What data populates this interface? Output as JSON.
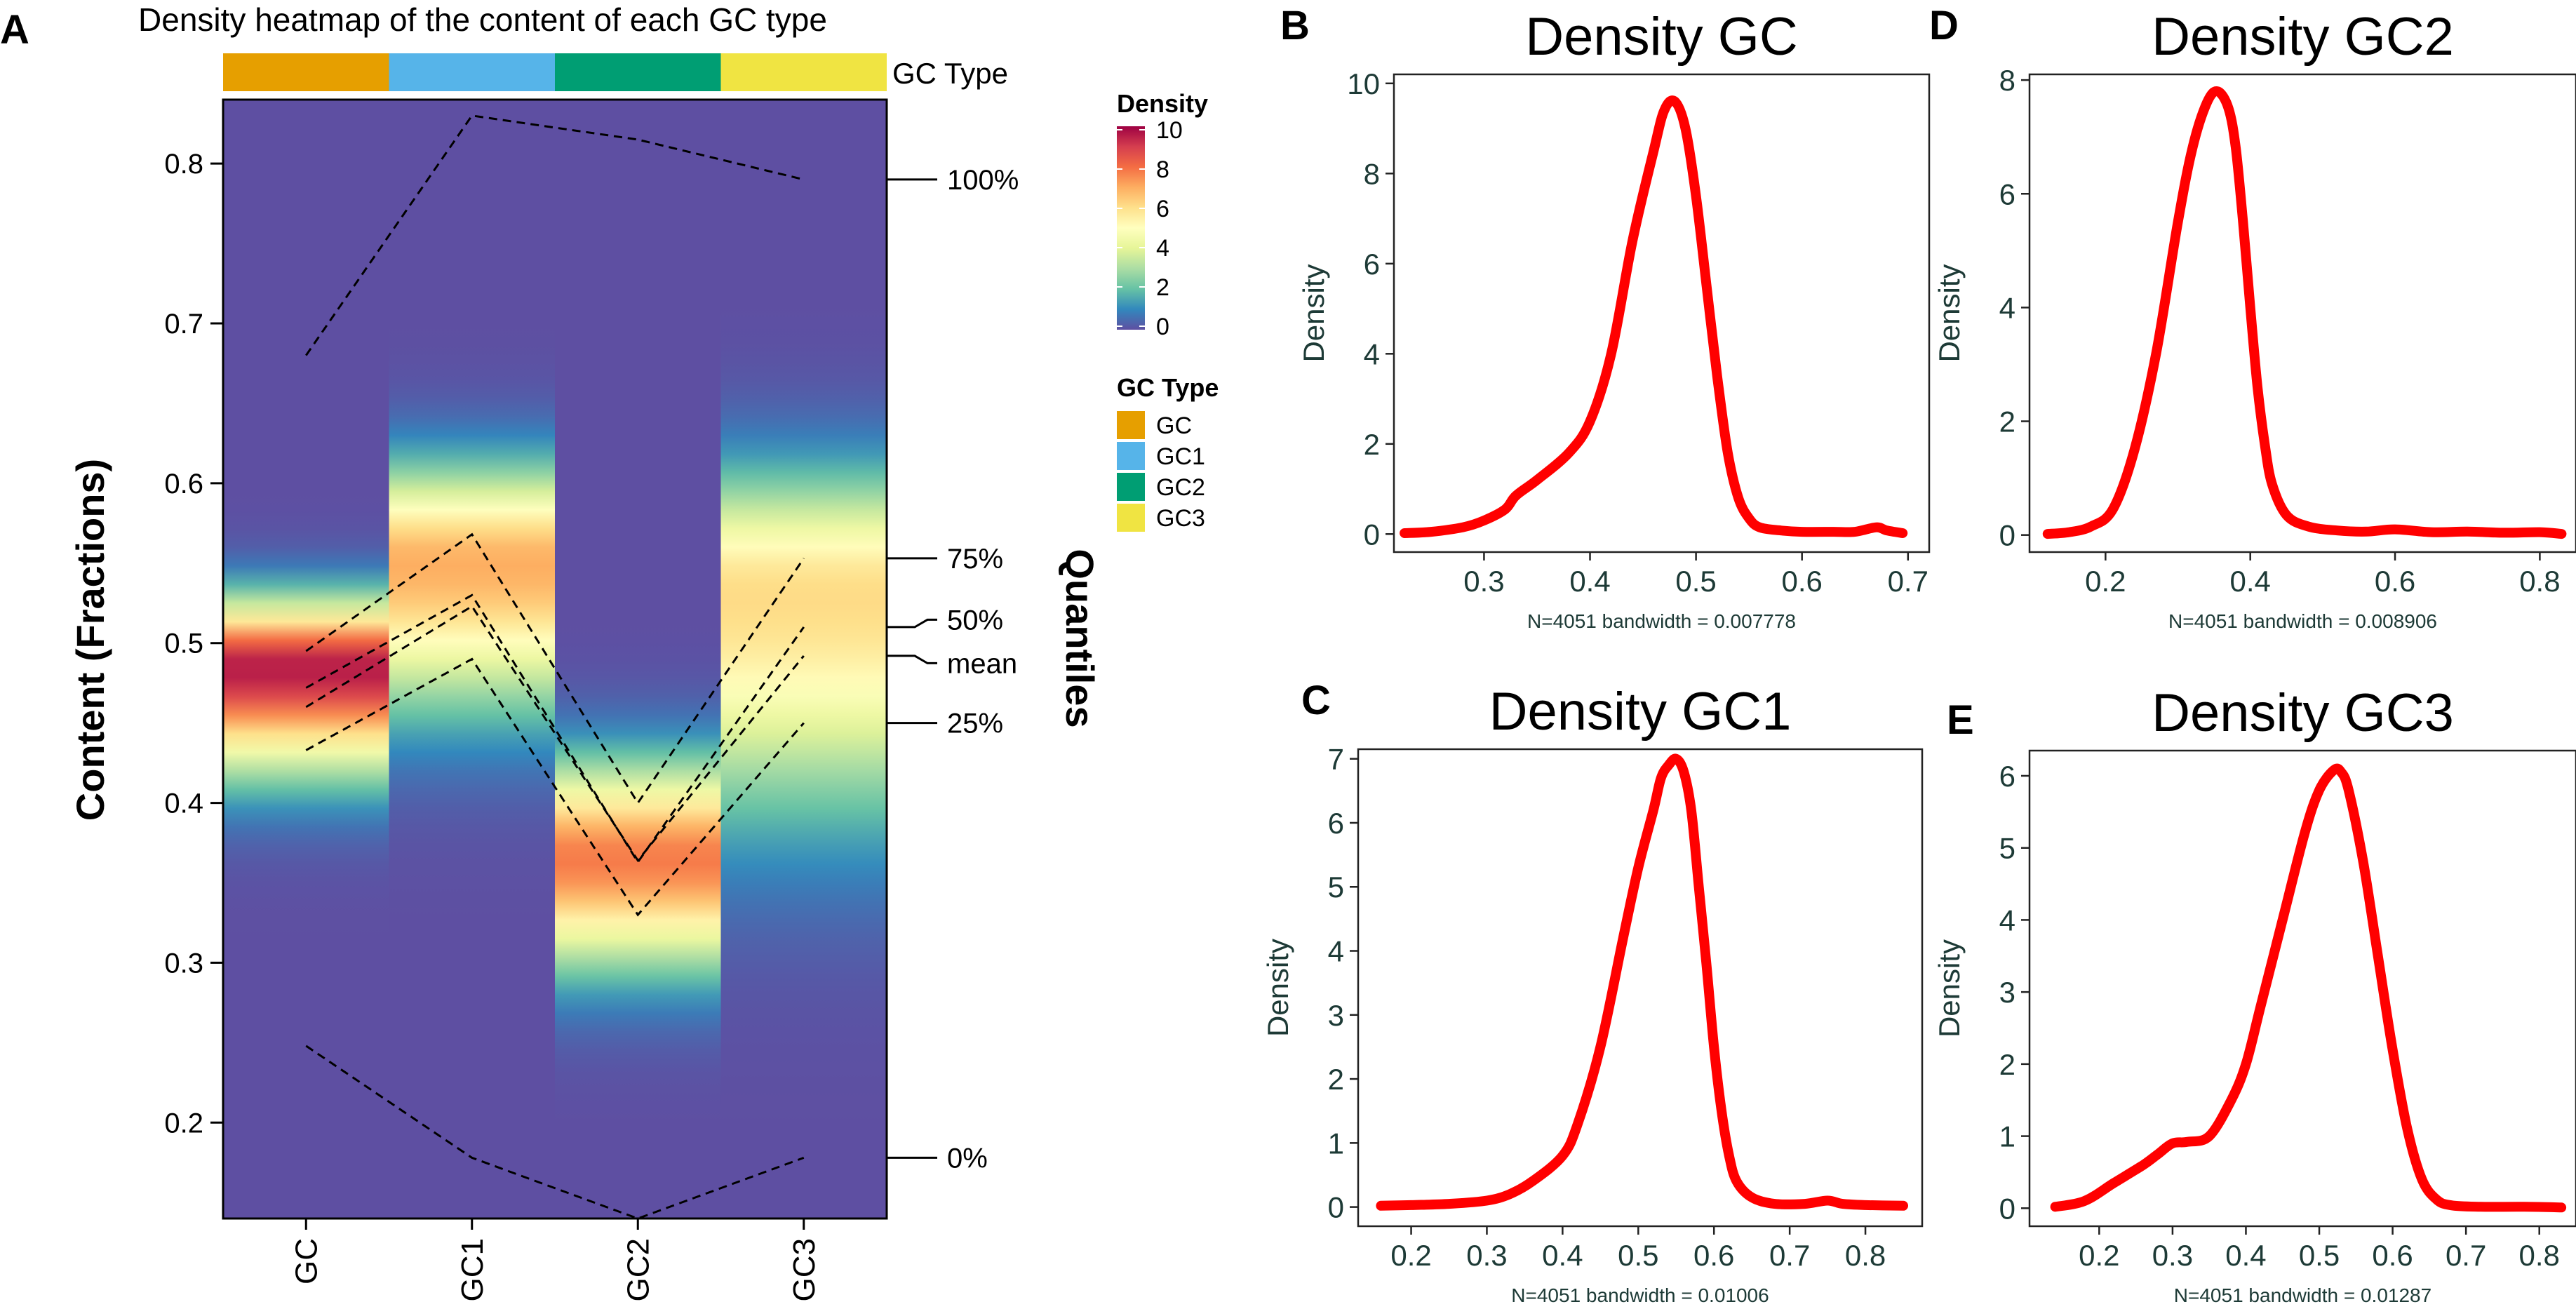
{
  "figure": {
    "panel_labels": {
      "a": "A",
      "b": "B",
      "c": "C",
      "d": "D",
      "e": "E"
    }
  },
  "chart_data": [
    {
      "panel": "A",
      "type": "heatmap",
      "title": "Density heatmap of the content of each GC type",
      "xlabel": "",
      "ylabel": "Content (Fractions)",
      "right_axis_label": "Quantiles",
      "categories": [
        "GC",
        "GC1",
        "GC2",
        "GC3"
      ],
      "ylim": [
        0.14,
        0.84
      ],
      "yticks": [
        0.2,
        0.3,
        0.4,
        0.5,
        0.6,
        0.7,
        0.8
      ],
      "annotation_bar": {
        "label": "GC Type",
        "colors": [
          "#E69F00",
          "#56B4E9",
          "#009E73",
          "#F0E442"
        ]
      },
      "density_legend": {
        "title": "Density",
        "ticks": [
          10,
          8,
          6,
          4,
          2,
          0
        ],
        "stops": [
          "#5E4FA2",
          "#3288BD",
          "#66C2A5",
          "#ABDDA4",
          "#E6F598",
          "#FFFFBF",
          "#FEE08B",
          "#FDAE61",
          "#F46D43",
          "#D53E4F",
          "#9E0142"
        ]
      },
      "type_legend": {
        "title": "GC Type",
        "items": [
          {
            "label": "GC",
            "color": "#E69F00"
          },
          {
            "label": "GC1",
            "color": "#56B4E9"
          },
          {
            "label": "GC2",
            "color": "#009E73"
          },
          {
            "label": "GC3",
            "color": "#F0E442"
          }
        ]
      },
      "quantiles": [
        {
          "label": "100%",
          "values": [
            0.68,
            0.83,
            0.815,
            0.79
          ]
        },
        {
          "label": "75%",
          "values": [
            0.495,
            0.568,
            0.4,
            0.553
          ]
        },
        {
          "label": "50%",
          "values": [
            0.472,
            0.53,
            0.363,
            0.51
          ]
        },
        {
          "label": "mean",
          "values": [
            0.46,
            0.523,
            0.364,
            0.492
          ]
        },
        {
          "label": "25%",
          "values": [
            0.433,
            0.49,
            0.33,
            0.45
          ]
        },
        {
          "label": "0%",
          "values": [
            0.248,
            0.178,
            0.14,
            0.178
          ]
        }
      ],
      "density_profiles": [
        {
          "type": "GC",
          "mode": 0.485,
          "sd_low": 0.043,
          "sd_high": 0.028,
          "peak": 9.6
        },
        {
          "type": "GC1",
          "mode": 0.55,
          "sd_low": 0.06,
          "sd_high": 0.04,
          "peak": 7.0
        },
        {
          "type": "GC2",
          "mode": 0.365,
          "sd_low": 0.045,
          "sd_high": 0.04,
          "peak": 7.8
        },
        {
          "type": "GC3",
          "mode": 0.53,
          "sd_low": 0.09,
          "sd_high": 0.05,
          "peak": 6.1
        }
      ]
    },
    {
      "panel": "B",
      "type": "line",
      "title": "Density GC",
      "xlabel": "N=4051 bandwidth = 0.007778",
      "ylabel": "Density",
      "xlim": [
        0.215,
        0.72
      ],
      "ylim": [
        -0.4,
        10.2
      ],
      "xticks": [
        0.3,
        0.4,
        0.5,
        0.6,
        0.7
      ],
      "yticks": [
        0,
        2,
        4,
        6,
        8,
        10
      ],
      "series": [
        {
          "name": "GC",
          "color": "#FF0000",
          "x": [
            0.225,
            0.25,
            0.28,
            0.3,
            0.32,
            0.33,
            0.35,
            0.38,
            0.4,
            0.42,
            0.44,
            0.46,
            0.47,
            0.48,
            0.49,
            0.5,
            0.51,
            0.52,
            0.53,
            0.54,
            0.55,
            0.56,
            0.58,
            0.6,
            0.63,
            0.65,
            0.67,
            0.68,
            0.695
          ],
          "y": [
            0.02,
            0.05,
            0.15,
            0.3,
            0.55,
            0.85,
            1.2,
            1.8,
            2.5,
            4.0,
            6.5,
            8.5,
            9.4,
            9.6,
            9.0,
            7.5,
            5.5,
            3.5,
            1.8,
            0.8,
            0.35,
            0.15,
            0.08,
            0.05,
            0.05,
            0.05,
            0.15,
            0.08,
            0.02
          ]
        }
      ]
    },
    {
      "panel": "C",
      "type": "line",
      "title": "Density GC1",
      "xlabel": "N=4051 bandwidth = 0.01006",
      "ylabel": "Density",
      "xlim": [
        0.13,
        0.875
      ],
      "ylim": [
        -0.3,
        7.15
      ],
      "xticks": [
        0.2,
        0.3,
        0.4,
        0.5,
        0.6,
        0.7,
        0.8
      ],
      "yticks": [
        0,
        1,
        2,
        3,
        4,
        5,
        6,
        7
      ],
      "series": [
        {
          "name": "GC1",
          "color": "#FF0000",
          "x": [
            0.16,
            0.2,
            0.25,
            0.3,
            0.33,
            0.36,
            0.4,
            0.42,
            0.45,
            0.48,
            0.5,
            0.52,
            0.53,
            0.54,
            0.55,
            0.56,
            0.57,
            0.58,
            0.59,
            0.6,
            0.61,
            0.62,
            0.63,
            0.65,
            0.68,
            0.72,
            0.75,
            0.77,
            0.8,
            0.85
          ],
          "y": [
            0.02,
            0.03,
            0.05,
            0.1,
            0.2,
            0.4,
            0.8,
            1.3,
            2.5,
            4.2,
            5.3,
            6.2,
            6.7,
            6.9,
            7.0,
            6.8,
            6.2,
            5.0,
            3.8,
            2.5,
            1.5,
            0.8,
            0.4,
            0.15,
            0.05,
            0.05,
            0.1,
            0.05,
            0.03,
            0.02
          ]
        }
      ]
    },
    {
      "panel": "D",
      "type": "line",
      "title": "Density GC2",
      "xlabel": "N=4051 bandwidth = 0.008906",
      "ylabel": "Density",
      "xlim": [
        0.095,
        0.85
      ],
      "ylim": [
        -0.3,
        8.1
      ],
      "xticks": [
        0.2,
        0.4,
        0.6,
        0.8
      ],
      "yticks": [
        0,
        2,
        4,
        6,
        8
      ],
      "series": [
        {
          "name": "GC2",
          "color": "#FF0000",
          "x": [
            0.12,
            0.15,
            0.18,
            0.21,
            0.24,
            0.27,
            0.3,
            0.32,
            0.34,
            0.355,
            0.37,
            0.38,
            0.39,
            0.4,
            0.41,
            0.42,
            0.43,
            0.45,
            0.48,
            0.52,
            0.56,
            0.6,
            0.65,
            0.7,
            0.75,
            0.8,
            0.83
          ],
          "y": [
            0.02,
            0.05,
            0.15,
            0.45,
            1.5,
            3.2,
            5.5,
            6.8,
            7.6,
            7.8,
            7.5,
            6.8,
            5.5,
            4.0,
            2.6,
            1.6,
            0.9,
            0.35,
            0.15,
            0.08,
            0.06,
            0.1,
            0.05,
            0.06,
            0.04,
            0.05,
            0.02
          ]
        }
      ]
    },
    {
      "panel": "E",
      "type": "line",
      "title": "Density GC3",
      "xlabel": "N=4051 bandwidth = 0.01287",
      "ylabel": "Density",
      "xlim": [
        0.105,
        0.85
      ],
      "ylim": [
        -0.25,
        6.35
      ],
      "xticks": [
        0.2,
        0.3,
        0.4,
        0.5,
        0.6,
        0.7,
        0.8
      ],
      "yticks": [
        0,
        1,
        2,
        3,
        4,
        5,
        6
      ],
      "series": [
        {
          "name": "GC3",
          "color": "#FF0000",
          "x": [
            0.14,
            0.18,
            0.22,
            0.26,
            0.28,
            0.3,
            0.32,
            0.35,
            0.38,
            0.4,
            0.42,
            0.45,
            0.48,
            0.5,
            0.52,
            0.53,
            0.54,
            0.56,
            0.58,
            0.6,
            0.62,
            0.64,
            0.66,
            0.68,
            0.72,
            0.78,
            0.83
          ],
          "y": [
            0.02,
            0.1,
            0.35,
            0.6,
            0.75,
            0.9,
            0.92,
            1.0,
            1.5,
            2.0,
            2.8,
            4.0,
            5.2,
            5.8,
            6.08,
            6.05,
            5.8,
            4.8,
            3.5,
            2.2,
            1.1,
            0.4,
            0.12,
            0.04,
            0.02,
            0.02,
            0.01
          ]
        }
      ]
    }
  ]
}
